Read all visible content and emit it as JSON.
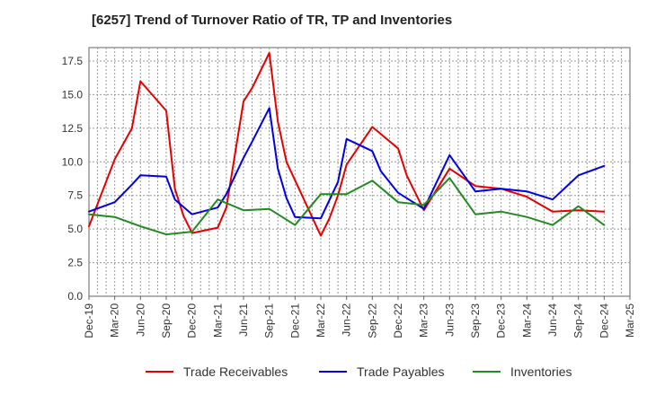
{
  "chart_data": {
    "type": "line",
    "title": "[6257]  Trend of Turnover Ratio of TR, TP and Inventories",
    "ylim": [
      0,
      17.5
    ],
    "y_ticks": [
      "0.0",
      "2.5",
      "5.0",
      "7.5",
      "10.0",
      "12.5",
      "15.0",
      "17.5"
    ],
    "x_tick_labels": [
      "Dec-19",
      "Mar-20",
      "Jun-20",
      "Sep-20",
      "Dec-20",
      "Mar-21",
      "Jun-21",
      "Sep-21",
      "Dec-21",
      "Mar-22",
      "Jun-22",
      "Sep-22",
      "Dec-22",
      "Mar-23",
      "Jun-23",
      "Sep-23",
      "Dec-23",
      "Mar-24",
      "Jun-24",
      "Sep-24",
      "Dec-24",
      "Mar-25"
    ],
    "grid": true,
    "legend_position": "bottom",
    "x": [
      "Dec-19",
      "Jan-20",
      "Feb-20",
      "Mar-20",
      "Apr-20",
      "May-20",
      "Jun-20",
      "Jul-20",
      "Aug-20",
      "Sep-20",
      "Oct-20",
      "Nov-20",
      "Dec-20",
      "Jan-21",
      "Feb-21",
      "Mar-21",
      "Apr-21",
      "May-21",
      "Jun-21",
      "Jul-21",
      "Aug-21",
      "Sep-21",
      "Oct-21",
      "Nov-21",
      "Dec-21",
      "Jan-22",
      "Feb-22",
      "Mar-22",
      "Apr-22",
      "May-22",
      "Jun-22",
      "Jul-22",
      "Aug-22",
      "Sep-22",
      "Oct-22",
      "Nov-22",
      "Dec-22",
      "Jan-23",
      "Feb-23",
      "Mar-23",
      "Apr-23",
      "May-23",
      "Jun-23",
      "Jul-23",
      "Aug-23",
      "Sep-23",
      "Oct-23",
      "Nov-23",
      "Dec-23",
      "Jan-24",
      "Feb-24",
      "Mar-24",
      "Apr-24",
      "May-24",
      "Jun-24",
      "Jul-24",
      "Aug-24",
      "Sep-24",
      "Oct-24",
      "Nov-24",
      "Dec-24",
      "Jan-25",
      "Feb-25",
      "Mar-25"
    ],
    "series": [
      {
        "name": "Trade Receivables",
        "color": "#e60000",
        "points": [
          [
            "Dec-19",
            5.2
          ],
          [
            "Mar-20",
            10.2
          ],
          [
            "May-20",
            12.5
          ],
          [
            "Jun-20",
            16.0
          ],
          [
            "Sep-20",
            13.8
          ],
          [
            "Oct-20",
            8.0
          ],
          [
            "Nov-20",
            6.0
          ],
          [
            "Dec-20",
            4.7
          ],
          [
            "Mar-21",
            5.1
          ],
          [
            "Apr-21",
            6.6
          ],
          [
            "Jun-21",
            14.5
          ],
          [
            "Jul-21",
            15.5
          ],
          [
            "Sep-21",
            18.1
          ],
          [
            "Oct-21",
            13.0
          ],
          [
            "Nov-21",
            10.0
          ],
          [
            "Mar-22",
            4.5
          ],
          [
            "Apr-22",
            5.8
          ],
          [
            "May-22",
            7.5
          ],
          [
            "Jun-22",
            9.8
          ],
          [
            "Sep-22",
            12.6
          ],
          [
            "Dec-22",
            11.0
          ],
          [
            "Jan-23",
            9.0
          ],
          [
            "Mar-23",
            6.4
          ],
          [
            "Jun-23",
            9.5
          ],
          [
            "Sep-23",
            8.2
          ],
          [
            "Dec-23",
            8.0
          ],
          [
            "Mar-24",
            7.4
          ],
          [
            "Jun-24",
            6.3
          ],
          [
            "Sep-24",
            6.4
          ],
          [
            "Dec-24",
            6.3
          ]
        ]
      },
      {
        "name": "Trade Payables",
        "color": "#0000e6",
        "points": [
          [
            "Dec-19",
            6.3
          ],
          [
            "Mar-20",
            7.0
          ],
          [
            "May-20",
            8.3
          ],
          [
            "Jun-20",
            9.0
          ],
          [
            "Sep-20",
            8.9
          ],
          [
            "Oct-20",
            7.2
          ],
          [
            "Dec-20",
            6.1
          ],
          [
            "Mar-21",
            6.6
          ],
          [
            "Apr-21",
            7.6
          ],
          [
            "Jun-21",
            10.3
          ],
          [
            "Jul-21",
            11.5
          ],
          [
            "Sep-21",
            14.0
          ],
          [
            "Oct-21",
            9.5
          ],
          [
            "Nov-21",
            7.3
          ],
          [
            "Dec-21",
            5.9
          ],
          [
            "Mar-22",
            5.8
          ],
          [
            "May-22",
            8.5
          ],
          [
            "Jun-22",
            11.7
          ],
          [
            "Sep-22",
            10.8
          ],
          [
            "Oct-22",
            9.3
          ],
          [
            "Dec-22",
            7.7
          ],
          [
            "Mar-23",
            6.5
          ],
          [
            "Jun-23",
            10.5
          ],
          [
            "Sep-23",
            7.8
          ],
          [
            "Dec-23",
            8.0
          ],
          [
            "Mar-24",
            7.8
          ],
          [
            "Jun-24",
            7.2
          ],
          [
            "Sep-24",
            9.0
          ],
          [
            "Dec-24",
            9.7
          ]
        ]
      },
      {
        "name": "Inventories",
        "color": "#228b22",
        "points": [
          [
            "Dec-19",
            6.1
          ],
          [
            "Mar-20",
            5.9
          ],
          [
            "Jun-20",
            5.2
          ],
          [
            "Sep-20",
            4.6
          ],
          [
            "Dec-20",
            4.8
          ],
          [
            "Mar-21",
            7.2
          ],
          [
            "Jun-21",
            6.4
          ],
          [
            "Sep-21",
            6.5
          ],
          [
            "Dec-21",
            5.3
          ],
          [
            "Mar-22",
            7.6
          ],
          [
            "Jun-22",
            7.6
          ],
          [
            "Sep-22",
            8.6
          ],
          [
            "Dec-22",
            7.0
          ],
          [
            "Mar-23",
            6.8
          ],
          [
            "Jun-23",
            8.8
          ],
          [
            "Sep-23",
            6.1
          ],
          [
            "Dec-23",
            6.3
          ],
          [
            "Mar-24",
            5.9
          ],
          [
            "Jun-24",
            5.3
          ],
          [
            "Sep-24",
            6.7
          ],
          [
            "Dec-24",
            5.3
          ]
        ]
      }
    ]
  }
}
